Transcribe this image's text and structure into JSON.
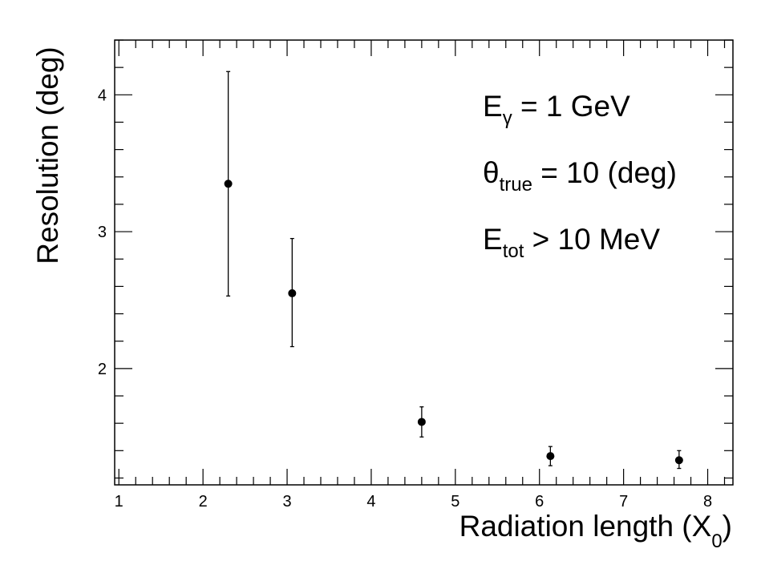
{
  "chart_data": {
    "type": "scatter",
    "xlabel_main": "Radiation length (X",
    "xlabel_sub": "0",
    "xlabel_close": ")",
    "ylabel": "Resolution (deg)",
    "xlim": [
      0.95,
      8.3
    ],
    "ylim": [
      1.15,
      4.4
    ],
    "x_ticks": [
      1,
      2,
      3,
      4,
      5,
      6,
      7,
      8
    ],
    "y_ticks": [
      2,
      3,
      4
    ],
    "points": [
      {
        "x": 2.3,
        "y": 3.35,
        "err_low": 2.53,
        "err_high": 4.17
      },
      {
        "x": 3.06,
        "y": 2.55,
        "err_low": 2.16,
        "err_high": 2.95
      },
      {
        "x": 4.6,
        "y": 1.61,
        "err_low": 1.5,
        "err_high": 1.72
      },
      {
        "x": 6.13,
        "y": 1.36,
        "err_low": 1.29,
        "err_high": 1.43
      },
      {
        "x": 7.66,
        "y": 1.33,
        "err_low": 1.27,
        "err_high": 1.4
      }
    ],
    "annotations": [
      {
        "main": "E",
        "sub": "γ",
        "rest": " = 1 GeV"
      },
      {
        "main": "θ",
        "sub": "true",
        "rest": " = 10 (deg)"
      },
      {
        "main": "E",
        "sub": "tot",
        "rest": " > 10 MeV"
      }
    ],
    "marker_color": "#000000"
  }
}
